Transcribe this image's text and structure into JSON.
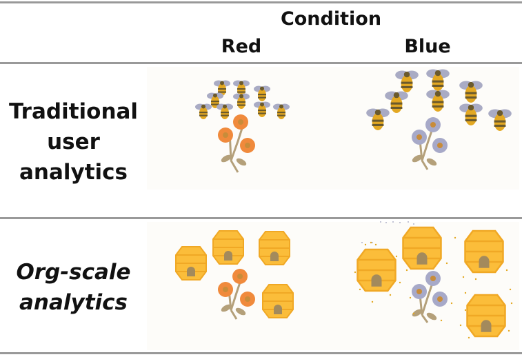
{
  "header": {
    "group_label": "Condition",
    "columns": [
      "Red",
      "Blue"
    ]
  },
  "rows": [
    {
      "label_lines": [
        "Traditional",
        "user",
        "analytics"
      ],
      "style": "normal"
    },
    {
      "label_lines": [
        "Org-scale",
        "analytics"
      ],
      "style": "italic"
    }
  ],
  "colors": {
    "rule": "#999999",
    "red_flower": "#f08a3c",
    "blue_flower": "#a7a9c8",
    "flower_center": "#c88c3a",
    "stem": "#b4a07a",
    "bee_body": "#e3a822",
    "bee_stripe": "#6b5a2c",
    "bee_wing": "#a9abc4",
    "hive": "#fbbd3a",
    "hive_outline": "#f0a825",
    "hive_door": "#a38a5c"
  },
  "icons": [
    "bee-icon",
    "flower-icon",
    "beehive-icon"
  ]
}
